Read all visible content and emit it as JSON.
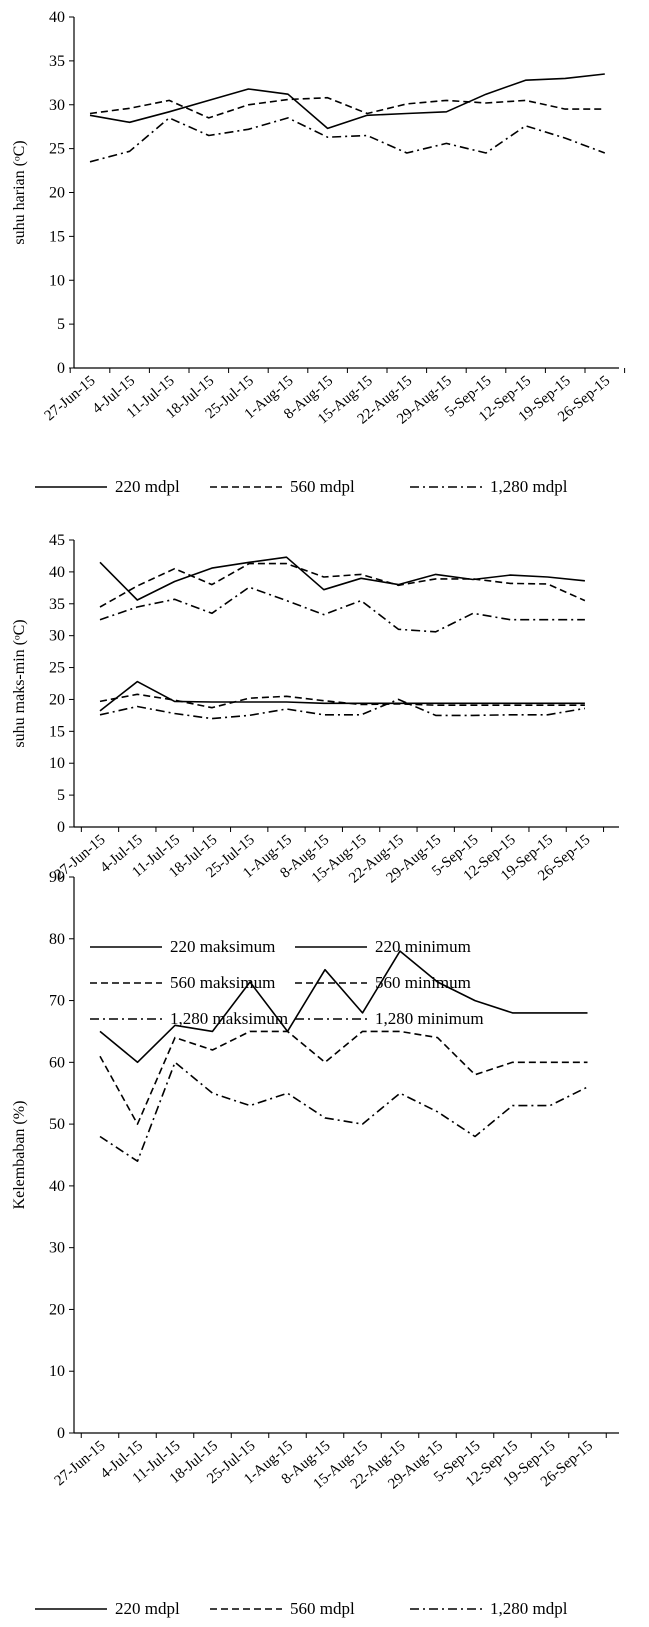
{
  "chart_data": [
    {
      "type": "line",
      "ylabel": "suhu harian (ᵒC)",
      "xlabel": "",
      "ylim": [
        0,
        40
      ],
      "yticks": [
        0,
        5,
        10,
        15,
        20,
        25,
        30,
        35,
        40
      ],
      "grid": false,
      "legend_position": "bottom",
      "categories": [
        "27-Jun-15",
        "4-Jul-15",
        "11-Jul-15",
        "18-Jul-15",
        "25-Jul-15",
        "1-Aug-15",
        "8-Aug-15",
        "15-Aug-15",
        "22-Aug-15",
        "29-Aug-15",
        "5-Sep-15",
        "12-Sep-15",
        "19-Sep-15",
        "26-Sep-15"
      ],
      "series": [
        {
          "name": "220 mdpl",
          "dash": "solid",
          "values": [
            28.8,
            28.0,
            29.2,
            30.5,
            31.8,
            31.2,
            27.3,
            28.8,
            29.0,
            29.2,
            31.2,
            32.8,
            33.0,
            33.5
          ]
        },
        {
          "name": "560 mdpl",
          "dash": "dashed",
          "values": [
            29.0,
            29.6,
            30.5,
            28.5,
            30.0,
            30.6,
            30.8,
            29.0,
            30.1,
            30.5,
            30.2,
            30.5,
            29.5,
            29.5
          ]
        },
        {
          "name": "1,280 mdpl",
          "dash": "dashdot",
          "values": [
            23.5,
            24.7,
            28.5,
            26.5,
            27.2,
            28.5,
            26.3,
            26.5,
            24.5,
            25.6,
            24.5,
            27.6,
            26.2,
            24.5
          ]
        }
      ]
    },
    {
      "type": "line",
      "ylabel": "suhu maks-min (ᵒC)",
      "xlabel": "",
      "ylim": [
        0,
        45
      ],
      "yticks": [
        0,
        5,
        10,
        15,
        20,
        25,
        30,
        35,
        40,
        45
      ],
      "grid": false,
      "legend_position": "bottom",
      "categories": [
        "27-Jun-15",
        "4-Jul-15",
        "11-Jul-15",
        "18-Jul-15",
        "25-Jul-15",
        "1-Aug-15",
        "8-Aug-15",
        "15-Aug-15",
        "22-Aug-15",
        "29-Aug-15",
        "5-Sep-15",
        "12-Sep-15",
        "19-Sep-15",
        "26-Sep-15"
      ],
      "series": [
        {
          "name": "220 maksimum",
          "dash": "solid",
          "values": [
            41.5,
            35.6,
            38.5,
            40.6,
            41.5,
            42.3,
            37.2,
            39.0,
            38.0,
            39.6,
            38.8,
            39.5,
            39.2,
            38.6
          ]
        },
        {
          "name": "220 minimum",
          "dash": "solid",
          "values": [
            18.2,
            22.8,
            19.7,
            19.6,
            19.6,
            19.6,
            19.4,
            19.4,
            19.4,
            19.4,
            19.4,
            19.4,
            19.4,
            19.4
          ]
        },
        {
          "name": "560 maksimum",
          "dash": "dashed",
          "values": [
            34.5,
            37.8,
            40.5,
            38.0,
            41.3,
            41.3,
            39.2,
            39.6,
            37.9,
            38.9,
            38.9,
            38.2,
            38.1,
            35.5
          ]
        },
        {
          "name": "560 minimum",
          "dash": "dashed",
          "values": [
            19.7,
            20.8,
            19.9,
            18.7,
            20.2,
            20.5,
            19.8,
            19.2,
            19.3,
            19.1,
            19.1,
            19.1,
            19.1,
            19.1
          ]
        },
        {
          "name": "1,280  maksimum",
          "dash": "dashdot",
          "values": [
            32.5,
            34.5,
            35.7,
            33.5,
            37.6,
            35.5,
            33.3,
            35.5,
            31.0,
            30.6,
            33.5,
            32.5,
            32.5,
            32.5
          ]
        },
        {
          "name": "1,280  minimum",
          "dash": "dashdot",
          "values": [
            17.6,
            18.9,
            17.8,
            17.0,
            17.5,
            18.5,
            17.6,
            17.6,
            20.0,
            17.5,
            17.5,
            17.6,
            17.6,
            18.6
          ]
        }
      ]
    },
    {
      "type": "line",
      "ylabel": "Kelembaban (%)",
      "xlabel": "",
      "ylim": [
        0,
        90
      ],
      "yticks": [
        0,
        10,
        20,
        30,
        40,
        50,
        60,
        70,
        80,
        90
      ],
      "grid": false,
      "legend_position": "bottom",
      "categories": [
        "27-Jun-15",
        "4-Jul-15",
        "11-Jul-15",
        "18-Jul-15",
        "25-Jul-15",
        "1-Aug-15",
        "8-Aug-15",
        "15-Aug-15",
        "22-Aug-15",
        "29-Aug-15",
        "5-Sep-15",
        "12-Sep-15",
        "19-Sep-15",
        "26-Sep-15"
      ],
      "series": [
        {
          "name": "220 mdpl",
          "dash": "solid",
          "values": [
            65,
            60,
            66,
            65,
            73,
            65,
            75,
            68,
            78,
            73,
            70,
            68,
            68,
            68
          ]
        },
        {
          "name": "560 mdpl",
          "dash": "dashed",
          "values": [
            61,
            50,
            64,
            62,
            65,
            65,
            60,
            65,
            65,
            64,
            58,
            60,
            60,
            60
          ]
        },
        {
          "name": "1,280 mdpl",
          "dash": "dashdot",
          "values": [
            48,
            44,
            60,
            55,
            53,
            55,
            51,
            50,
            55,
            52,
            48,
            53,
            53,
            56
          ]
        }
      ]
    }
  ]
}
